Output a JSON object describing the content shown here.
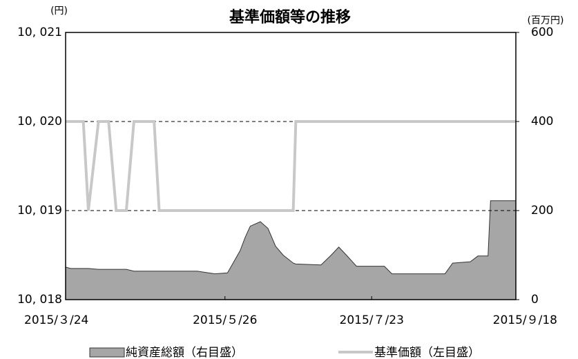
{
  "chart_data": {
    "type": "area-line",
    "title": "基準価額等の推移",
    "y_unit_label": "(円)",
    "y2_unit_label": "(百万円)",
    "x": [
      "2015-03-24",
      "2015-03-26",
      "2015-03-31",
      "2015-04-02",
      "2015-04-06",
      "2015-04-10",
      "2015-04-13",
      "2015-04-17",
      "2015-04-20",
      "2015-04-28",
      "2015-04-30",
      "2015-05-15",
      "2015-05-22",
      "2015-05-27",
      "2015-06-01",
      "2015-06-03",
      "2015-06-05",
      "2015-06-09",
      "2015-06-12",
      "2015-06-15",
      "2015-06-18",
      "2015-06-22",
      "2015-06-23",
      "2015-07-03",
      "2015-07-07",
      "2015-07-10",
      "2015-07-13",
      "2015-07-17",
      "2015-07-28",
      "2015-07-31",
      "2015-08-21",
      "2015-08-24",
      "2015-08-31",
      "2015-09-03",
      "2015-09-07",
      "2015-09-08",
      "2015-09-18"
    ],
    "series": [
      {
        "name": "純資産総額（右目盛）",
        "kind": "area",
        "axis": "y2",
        "color": "#a6a6a6",
        "values": [
          73,
          70,
          70,
          70,
          68,
          68,
          68,
          68,
          64,
          64,
          64,
          64,
          58,
          60,
          110,
          140,
          165,
          175,
          160,
          120,
          100,
          82,
          80,
          78,
          100,
          118,
          100,
          75,
          75,
          58,
          58,
          82,
          85,
          98,
          98,
          222,
          222
        ]
      },
      {
        "name": "基準価額（左目盛）",
        "kind": "line",
        "color": "#c8c8c8",
        "values": [
          10020,
          10020,
          10020,
          10019,
          10020,
          10020,
          10019,
          10019,
          10020,
          10020,
          10019,
          10019,
          10019,
          10019,
          10019,
          10019,
          10019,
          10019,
          10019,
          10019,
          10019,
          10019,
          10020,
          10020,
          10020,
          10020,
          10020,
          10020,
          10020,
          10020,
          10020,
          10020,
          10020,
          10020,
          10020,
          10020,
          10020
        ]
      }
    ],
    "xlim": [
      "2015-03-24",
      "2015-09-18"
    ],
    "xticks": [
      {
        "value": "2015-03-24",
        "label": "2015/３/24"
      },
      {
        "value": "2015-05-26",
        "label": "2015/５/26"
      },
      {
        "value": "2015-07-23",
        "label": "2015/７/23"
      },
      {
        "value": "2015-09-18",
        "label": "2015/９/18"
      }
    ],
    "ylim": [
      10018,
      10021
    ],
    "yticks": [
      {
        "value": 10018,
        "label": "10, 018"
      },
      {
        "value": 10019,
        "label": "10, 019"
      },
      {
        "value": 10020,
        "label": "10, 020"
      },
      {
        "value": 10021,
        "label": "10, 021"
      }
    ],
    "y2lim": [
      0,
      600
    ],
    "y2ticks": [
      0,
      200,
      400,
      600
    ],
    "grid": true
  }
}
